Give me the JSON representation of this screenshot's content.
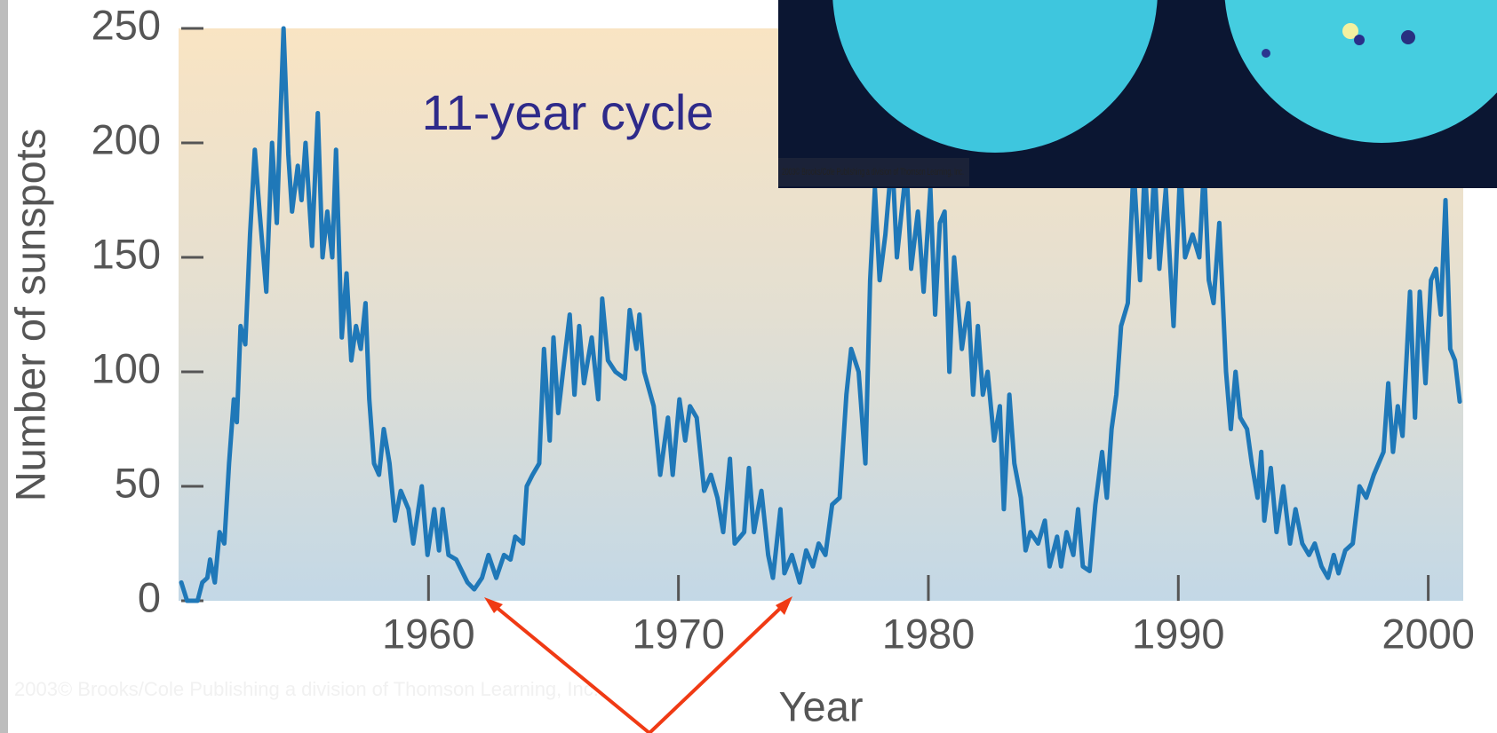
{
  "chart_data": {
    "type": "line",
    "y_label": "Number of sunspots",
    "x_label": "Year",
    "annotation": "11-year cycle",
    "credit": "2003© Brooks/Cole Publishing a division of Thomson Learning, Inc.",
    "color": "#1f78b8",
    "xlim": [
      1950,
      2001.4
    ],
    "ylim": [
      0,
      250
    ],
    "xticks": [
      1960,
      1970,
      1980,
      1990,
      2000
    ],
    "yticks": [
      0,
      50,
      100,
      150,
      200,
      250
    ],
    "x": [
      1950.11,
      1950.34,
      1950.76,
      1950.95,
      1951.15,
      1951.26,
      1951.45,
      1951.64,
      1951.83,
      1952.02,
      1952.21,
      1952.33,
      1952.48,
      1952.67,
      1952.86,
      1953.05,
      1953.24,
      1953.51,
      1953.74,
      1953.93,
      1954.2,
      1954.39,
      1954.54,
      1954.77,
      1954.92,
      1955.08,
      1955.34,
      1955.57,
      1955.76,
      1955.95,
      1956.15,
      1956.3,
      1956.53,
      1956.72,
      1956.91,
      1957.1,
      1957.29,
      1957.48,
      1957.63,
      1957.82,
      1958.02,
      1958.21,
      1958.44,
      1958.66,
      1958.89,
      1959.2,
      1959.39,
      1959.73,
      1959.96,
      1960.23,
      1960.42,
      1960.57,
      1960.8,
      1961.11,
      1961.56,
      1961.83,
      1962.14,
      1962.4,
      1962.71,
      1963.02,
      1963.28,
      1963.47,
      1963.78,
      1963.93,
      1964.16,
      1964.43,
      1964.62,
      1964.85,
      1965.0,
      1965.19,
      1965.38,
      1965.65,
      1965.84,
      1966.03,
      1966.22,
      1966.53,
      1966.79,
      1966.95,
      1967.18,
      1967.48,
      1967.86,
      1968.05,
      1968.32,
      1968.44,
      1968.63,
      1969.01,
      1969.27,
      1969.58,
      1969.77,
      1970.04,
      1970.27,
      1970.46,
      1970.73,
      1971.03,
      1971.3,
      1971.56,
      1971.79,
      1972.06,
      1972.25,
      1972.63,
      1972.82,
      1973.02,
      1973.32,
      1973.59,
      1973.78,
      1974.08,
      1974.24,
      1974.54,
      1974.85,
      1975.11,
      1975.38,
      1975.61,
      1975.88,
      1976.15,
      1976.45,
      1976.72,
      1976.91,
      1977.21,
      1977.48,
      1977.67,
      1977.86,
      1978.05,
      1978.28,
      1978.55,
      1978.74,
      1978.93,
      1979.12,
      1979.31,
      1979.58,
      1979.81,
      1980.08,
      1980.27,
      1980.46,
      1980.65,
      1980.84,
      1981.03,
      1981.34,
      1981.6,
      1981.79,
      1981.98,
      1982.18,
      1982.37,
      1982.63,
      1982.86,
      1983.02,
      1983.24,
      1983.44,
      1983.7,
      1983.89,
      1984.08,
      1984.39,
      1984.66,
      1984.85,
      1985.15,
      1985.31,
      1985.53,
      1985.8,
      1985.99,
      1986.18,
      1986.45,
      1986.68,
      1986.95,
      1987.14,
      1987.33,
      1987.52,
      1987.71,
      1987.98,
      1988.21,
      1988.47,
      1988.66,
      1988.85,
      1989.05,
      1989.24,
      1989.5,
      1989.81,
      1990.08,
      1990.27,
      1990.57,
      1990.84,
      1991.03,
      1991.22,
      1991.41,
      1991.64,
      1991.91,
      1992.1,
      1992.29,
      1992.48,
      1992.75,
      1992.94,
      1993.17,
      1993.32,
      1993.44,
      1993.7,
      1993.93,
      1994.2,
      1994.47,
      1994.69,
      1994.96,
      1995.23,
      1995.46,
      1995.73,
      1995.99,
      1996.22,
      1996.41,
      1996.68,
      1996.98,
      1997.25,
      1997.52,
      1997.82,
      1998.21,
      1998.4,
      1998.59,
      1998.78,
      1998.97,
      1999.27,
      1999.47,
      1999.66,
      1999.89,
      2000.11,
      2000.31,
      2000.5,
      2000.69,
      2000.88,
      2001.07,
      2001.26
    ],
    "values": [
      8,
      0,
      0,
      8,
      10,
      18,
      8,
      30,
      25,
      60,
      88,
      78,
      120,
      112,
      160,
      197,
      170,
      135,
      200,
      165,
      250,
      195,
      170,
      190,
      175,
      200,
      155,
      213,
      150,
      170,
      150,
      197,
      115,
      143,
      105,
      120,
      110,
      130,
      88,
      60,
      55,
      75,
      60,
      35,
      48,
      40,
      25,
      50,
      20,
      40,
      22,
      40,
      20,
      18,
      8,
      5,
      10,
      20,
      10,
      20,
      18,
      28,
      25,
      50,
      55,
      60,
      110,
      70,
      115,
      82,
      100,
      125,
      90,
      120,
      95,
      115,
      88,
      132,
      105,
      100,
      97,
      127,
      110,
      125,
      100,
      85,
      55,
      80,
      55,
      88,
      70,
      85,
      80,
      48,
      55,
      45,
      30,
      62,
      25,
      30,
      58,
      30,
      48,
      20,
      10,
      40,
      12,
      20,
      8,
      22,
      15,
      25,
      20,
      42,
      45,
      90,
      110,
      100,
      60,
      140,
      180,
      140,
      160,
      195,
      150,
      170,
      190,
      145,
      170,
      135,
      180,
      125,
      165,
      170,
      100,
      150,
      110,
      130,
      90,
      120,
      90,
      100,
      70,
      85,
      40,
      90,
      60,
      45,
      22,
      30,
      25,
      35,
      15,
      28,
      15,
      30,
      20,
      40,
      15,
      13,
      42,
      65,
      45,
      75,
      90,
      120,
      130,
      190,
      140,
      190,
      150,
      190,
      145,
      180,
      120,
      190,
      150,
      160,
      150,
      190,
      140,
      130,
      165,
      100,
      75,
      100,
      80,
      75,
      60,
      45,
      65,
      35,
      58,
      30,
      50,
      25,
      40,
      25,
      20,
      25,
      15,
      10,
      20,
      12,
      22,
      25,
      50,
      45,
      55,
      65,
      95,
      65,
      85,
      72,
      135,
      80,
      135,
      95,
      140,
      145,
      125,
      175,
      110,
      105,
      87
    ]
  }
}
